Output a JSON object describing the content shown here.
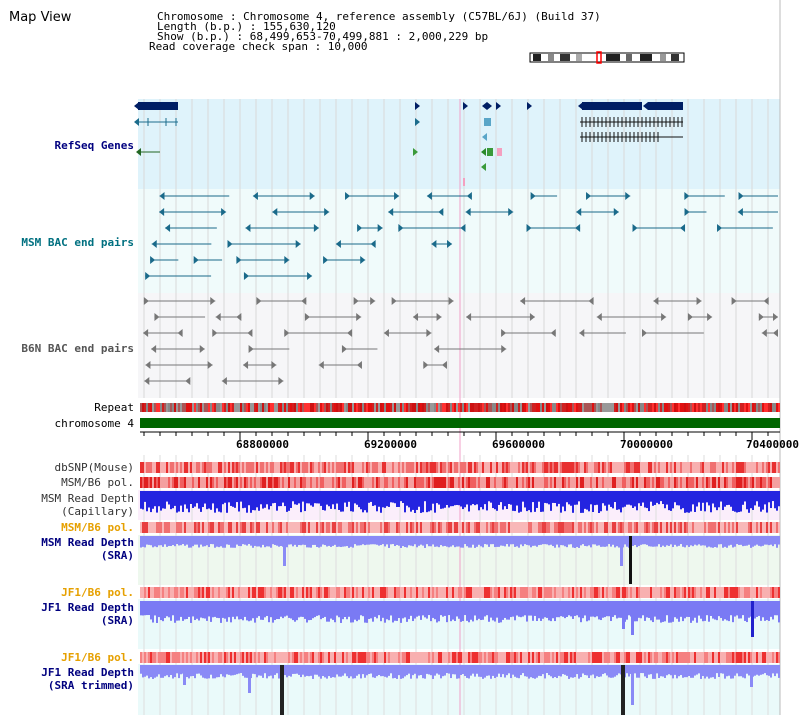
{
  "map_title": "Map View",
  "header": {
    "chromosome_line": "Chromosome      : Chromosome 4, reference assembly (C57BL/6J) (Build 37)",
    "length_line": "Length (b.p.) : 155,630,120",
    "show_line": "  Show (b.p.) : 68,499,653-70,499,881 : 2,000,229 bp",
    "coverage_line": "Read coverage check span : 10,000"
  },
  "tracks": {
    "refseq": "RefSeq Genes",
    "msm_bac": "MSM BAC end pairs",
    "b6n_bac": "B6N BAC end pairs",
    "repeat": "Repeat",
    "chromosome": "chromosome 4",
    "dbsnp": "dbSNP(Mouse)",
    "msm_b6_pol_1": "MSM/B6 pol.",
    "msm_depth_cap_1": "MSM Read Depth",
    "msm_depth_cap_2": "(Capillary)",
    "msm_b6_pol_2": "MSM/B6 pol.",
    "msm_depth_sra_1": "MSM Read Depth",
    "msm_depth_sra_2": "(SRA)",
    "jf1_b6_pol_1": "JF1/B6 pol.",
    "jf1_depth_sra_1": "JF1 Read Depth",
    "jf1_depth_sra_2": "(SRA)",
    "jf1_b6_pol_2": "JF1/B6 pol.",
    "jf1_depth_trim_1": "JF1 Read Depth",
    "jf1_depth_trim_2": "(SRA trimmed)"
  },
  "axis": {
    "ticks": [
      "68800000",
      "69200000",
      "69600000",
      "70000000",
      "70400000"
    ]
  },
  "colors": {
    "refseq_bg": "#dff3fb",
    "msm_bg": "#f0fbfb",
    "b6n_bg": "#f6f6f8",
    "navy": "#001e64",
    "teal": "#1c6c8c",
    "gray": "#707070",
    "chrom_green": "#006600",
    "depth_blue": "#2222ee",
    "depth_light": "#8888ff",
    "label_navy": "#00007f",
    "label_orange": "#e6a000",
    "label_teal": "#007080",
    "label_gray": "#555555"
  }
}
